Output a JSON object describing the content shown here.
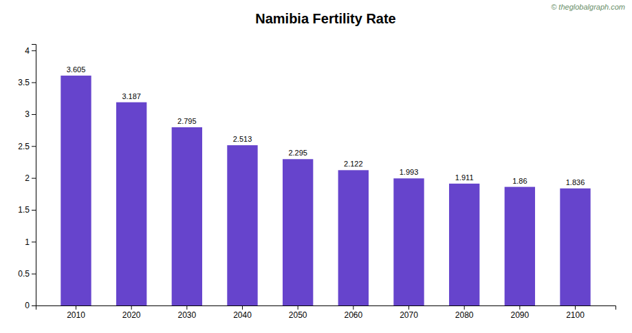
{
  "chart_data": {
    "type": "bar",
    "title": "Namibia Fertility Rate",
    "categories": [
      2010,
      2020,
      2030,
      2040,
      2050,
      2060,
      2070,
      2080,
      2090,
      2100
    ],
    "values": [
      3.605,
      3.187,
      2.795,
      2.513,
      2.295,
      2.122,
      1.993,
      1.911,
      1.86,
      1.836
    ],
    "color": "#6644cc",
    "ylim": [
      0,
      4.1
    ],
    "yticks": [
      0,
      0.5,
      1,
      1.5,
      2,
      2.5,
      3,
      3.5,
      4
    ],
    "grid": false,
    "data_labels": true,
    "annotations": [
      "© theglobalgraph.com"
    ]
  }
}
